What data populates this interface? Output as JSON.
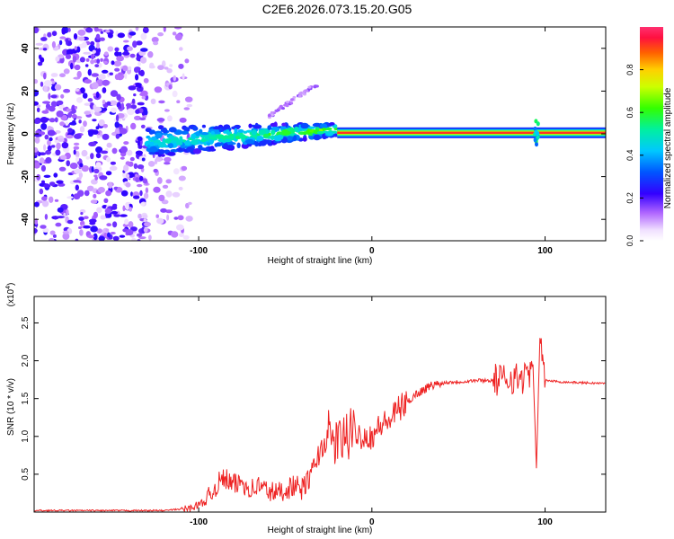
{
  "title": "C2E6.2026.073.15.20.G05",
  "chart_data": [
    {
      "type": "heatmap",
      "title": "C2E6.2026.073.15.20.G05",
      "xlabel": "Height of straight line (km)",
      "ylabel": "Frequency (Hz)",
      "xlim": [
        -195,
        135
      ],
      "ylim": [
        -50,
        50
      ],
      "x_ticks": [
        -100,
        0,
        100
      ],
      "y_ticks": [
        -40,
        -20,
        0,
        20,
        40
      ],
      "colorbar": {
        "label": "Normalized spectral amplitude",
        "range": [
          0,
          1
        ],
        "ticks": [
          0,
          0.2,
          0.4,
          0.6,
          0.8
        ],
        "tick_labels": [
          "0.0",
          "0.2",
          "0.4",
          "0.6",
          "0.8"
        ]
      },
      "features": {
        "noise_region_x": [
          -195,
          -105
        ],
        "emerging_signal_x": [
          -130,
          -20
        ],
        "signal_frequency_start_hz": -4,
        "signal_frequency_end_hz": 2,
        "upper_branch_x": [
          -60,
          -30
        ],
        "upper_branch_freq_hz": [
          8,
          24
        ],
        "steady_signal_x": [
          -20,
          135
        ],
        "steady_signal_freq_hz": 0.5,
        "disturbance_at_x": 95
      }
    },
    {
      "type": "line",
      "xlabel": "Height of straight line (km)",
      "ylabel": "SNR (10 * v/v)",
      "y_multiplier": "(x10^4)",
      "xlim": [
        -195,
        135
      ],
      "ylim": [
        0,
        2.85
      ],
      "x_ticks": [
        -100,
        0,
        100
      ],
      "y_ticks": [
        0.5,
        1.0,
        1.5,
        2.0,
        2.5
      ],
      "series": [
        {
          "name": "SNR",
          "color": "#ee2222",
          "x": [
            -195,
            -120,
            -105,
            -95,
            -90,
            -85,
            -80,
            -75,
            -70,
            -65,
            -60,
            -55,
            -50,
            -45,
            -40,
            -35,
            -30,
            -25,
            -20,
            -15,
            -10,
            -5,
            0,
            5,
            10,
            15,
            20,
            25,
            30,
            35,
            40,
            45,
            50,
            55,
            60,
            65,
            70,
            75,
            80,
            85,
            90,
            93,
            95,
            97,
            100,
            110,
            120,
            135
          ],
          "values": [
            0.02,
            0.02,
            0.05,
            0.15,
            0.35,
            0.45,
            0.35,
            0.4,
            0.3,
            0.35,
            0.28,
            0.25,
            0.3,
            0.35,
            0.3,
            0.5,
            0.8,
            1.0,
            0.9,
            1.0,
            1.05,
            1.0,
            1.0,
            1.15,
            1.2,
            1.35,
            1.45,
            1.55,
            1.62,
            1.68,
            1.7,
            1.72,
            1.72,
            1.73,
            1.74,
            1.74,
            1.74,
            1.75,
            1.78,
            1.76,
            1.8,
            1.95,
            0.58,
            2.3,
            1.74,
            1.72,
            1.71,
            1.7
          ]
        }
      ]
    }
  ]
}
